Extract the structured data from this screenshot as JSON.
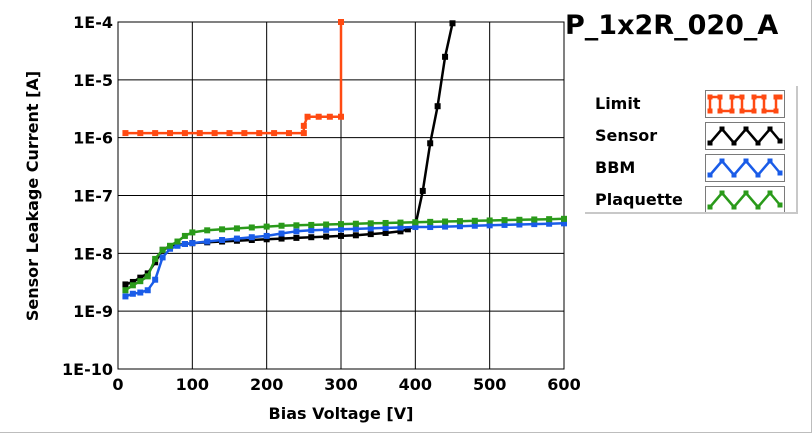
{
  "chart_data": {
    "type": "line",
    "title": "P_1x2R_020_A",
    "xlabel": "Bias Voltage [V]",
    "ylabel": "Sensor Leakage Current [A]",
    "xlim": [
      0,
      600
    ],
    "ylim": [
      1e-10,
      0.0001
    ],
    "yscale": "log",
    "grid": true,
    "legend_position": "right",
    "x_ticks": [
      "0",
      "100",
      "200",
      "300",
      "400",
      "500",
      "600"
    ],
    "y_ticks": [
      "1E-10",
      "1E-9",
      "1E-8",
      "1E-7",
      "1E-6",
      "1E-5",
      "1E-4"
    ],
    "series": [
      {
        "name": "Limit",
        "color": "#ff4a12",
        "points": [
          [
            10,
            1.2e-06
          ],
          [
            30,
            1.2e-06
          ],
          [
            50,
            1.2e-06
          ],
          [
            70,
            1.2e-06
          ],
          [
            90,
            1.2e-06
          ],
          [
            110,
            1.2e-06
          ],
          [
            130,
            1.2e-06
          ],
          [
            150,
            1.2e-06
          ],
          [
            170,
            1.2e-06
          ],
          [
            190,
            1.2e-06
          ],
          [
            210,
            1.2e-06
          ],
          [
            230,
            1.2e-06
          ],
          [
            250,
            1.2e-06
          ],
          [
            250,
            1.6e-06
          ],
          [
            255,
            2.3e-06
          ],
          [
            270,
            2.3e-06
          ],
          [
            285,
            2.3e-06
          ],
          [
            300,
            2.3e-06
          ],
          [
            300,
            0.0001
          ]
        ]
      },
      {
        "name": "Sensor",
        "color": "#000000",
        "points": [
          [
            10,
            2.9e-09
          ],
          [
            20,
            3.2e-09
          ],
          [
            30,
            3.8e-09
          ],
          [
            40,
            4.5e-09
          ],
          [
            50,
            7e-09
          ],
          [
            60,
            1.15e-08
          ],
          [
            70,
            1.3e-08
          ],
          [
            80,
            1.4e-08
          ],
          [
            90,
            1.45e-08
          ],
          [
            100,
            1.5e-08
          ],
          [
            120,
            1.55e-08
          ],
          [
            140,
            1.6e-08
          ],
          [
            160,
            1.65e-08
          ],
          [
            180,
            1.7e-08
          ],
          [
            200,
            1.75e-08
          ],
          [
            220,
            1.8e-08
          ],
          [
            240,
            1.85e-08
          ],
          [
            260,
            1.9e-08
          ],
          [
            280,
            1.95e-08
          ],
          [
            300,
            2e-08
          ],
          [
            320,
            2.05e-08
          ],
          [
            340,
            2.15e-08
          ],
          [
            360,
            2.25e-08
          ],
          [
            380,
            2.4e-08
          ],
          [
            390,
            2.6e-08
          ],
          [
            400,
            3e-08
          ],
          [
            410,
            1.2e-07
          ],
          [
            420,
            8e-07
          ],
          [
            430,
            3.5e-06
          ],
          [
            440,
            2.5e-05
          ],
          [
            450,
            9.5e-05
          ]
        ]
      },
      {
        "name": "BBM",
        "color": "#1a5ce8",
        "points": [
          [
            10,
            1.8e-09
          ],
          [
            20,
            2e-09
          ],
          [
            30,
            2.1e-09
          ],
          [
            40,
            2.3e-09
          ],
          [
            50,
            3.5e-09
          ],
          [
            60,
            8.5e-09
          ],
          [
            70,
            1.2e-08
          ],
          [
            80,
            1.35e-08
          ],
          [
            90,
            1.45e-08
          ],
          [
            100,
            1.5e-08
          ],
          [
            120,
            1.6e-08
          ],
          [
            140,
            1.7e-08
          ],
          [
            160,
            1.8e-08
          ],
          [
            180,
            1.9e-08
          ],
          [
            200,
            2e-08
          ],
          [
            220,
            2.2e-08
          ],
          [
            240,
            2.4e-08
          ],
          [
            260,
            2.5e-08
          ],
          [
            280,
            2.55e-08
          ],
          [
            300,
            2.6e-08
          ],
          [
            320,
            2.65e-08
          ],
          [
            340,
            2.7e-08
          ],
          [
            360,
            2.75e-08
          ],
          [
            380,
            2.8e-08
          ],
          [
            400,
            2.85e-08
          ],
          [
            420,
            2.85e-08
          ],
          [
            440,
            2.9e-08
          ],
          [
            460,
            2.95e-08
          ],
          [
            480,
            3e-08
          ],
          [
            500,
            3.05e-08
          ],
          [
            520,
            3.1e-08
          ],
          [
            540,
            3.15e-08
          ],
          [
            560,
            3.2e-08
          ],
          [
            580,
            3.25e-08
          ],
          [
            600,
            3.3e-08
          ]
        ]
      },
      {
        "name": "Plaquette",
        "color": "#2a9a1a",
        "points": [
          [
            10,
            2.3e-09
          ],
          [
            20,
            2.8e-09
          ],
          [
            30,
            3.3e-09
          ],
          [
            40,
            4e-09
          ],
          [
            50,
            8e-09
          ],
          [
            60,
            1.15e-08
          ],
          [
            70,
            1.35e-08
          ],
          [
            80,
            1.6e-08
          ],
          [
            90,
            2e-08
          ],
          [
            100,
            2.3e-08
          ],
          [
            120,
            2.5e-08
          ],
          [
            140,
            2.6e-08
          ],
          [
            160,
            2.7e-08
          ],
          [
            180,
            2.8e-08
          ],
          [
            200,
            2.9e-08
          ],
          [
            220,
            3e-08
          ],
          [
            240,
            3.05e-08
          ],
          [
            260,
            3.1e-08
          ],
          [
            280,
            3.15e-08
          ],
          [
            300,
            3.2e-08
          ],
          [
            320,
            3.25e-08
          ],
          [
            340,
            3.3e-08
          ],
          [
            360,
            3.35e-08
          ],
          [
            380,
            3.4e-08
          ],
          [
            400,
            3.45e-08
          ],
          [
            420,
            3.5e-08
          ],
          [
            440,
            3.55e-08
          ],
          [
            460,
            3.6e-08
          ],
          [
            480,
            3.65e-08
          ],
          [
            500,
            3.7e-08
          ],
          [
            520,
            3.75e-08
          ],
          [
            540,
            3.8e-08
          ],
          [
            560,
            3.85e-08
          ],
          [
            580,
            3.9e-08
          ],
          [
            600,
            3.95e-08
          ]
        ]
      }
    ]
  },
  "legend": {
    "items": [
      {
        "label": "Limit",
        "color": "#ff4a12"
      },
      {
        "label": "Sensor",
        "color": "#000000"
      },
      {
        "label": "BBM",
        "color": "#1a5ce8"
      },
      {
        "label": "Plaquette",
        "color": "#2a9a1a"
      }
    ]
  }
}
